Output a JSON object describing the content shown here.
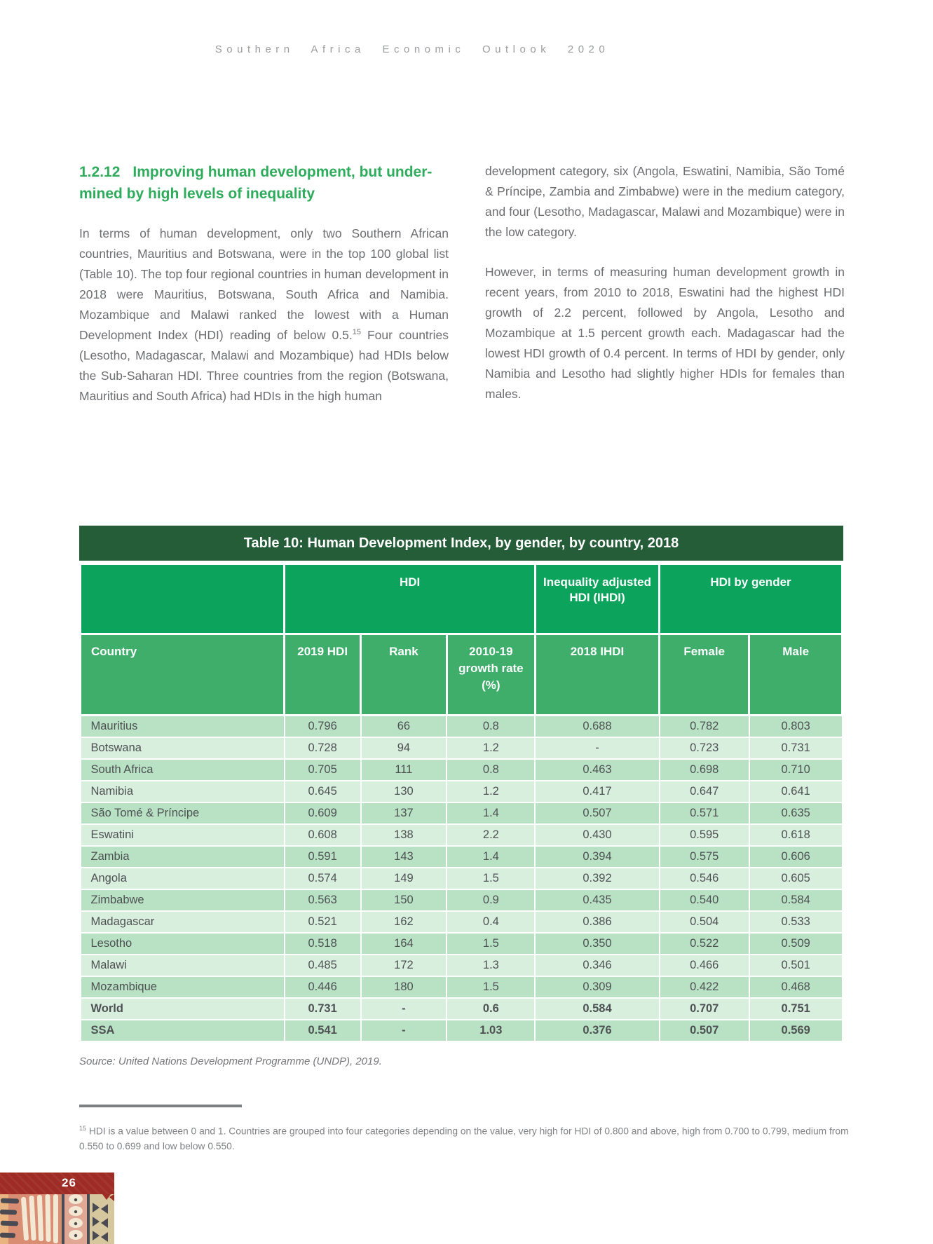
{
  "page": {
    "header_title": "Southern Africa Economic Outlook 2020",
    "page_number": "26"
  },
  "section": {
    "number": "1.2.12",
    "title_line1": "Improving human development, but under-",
    "title_line2": "mined by high levels of inequality"
  },
  "body": {
    "left_p1_part1": "In terms of human development, only two Southern African countries, Mauritius and Botswana, were in the top 100 global list (Table 10). The top four regional countries in human development in 2018 were Mauritius, Botswana, South Africa and Namibia. Mozambique and Malawi ranked the lowest with a Human Development Index (HDI) reading of below 0.5.",
    "left_p1_footnote_marker": "15",
    "left_p1_part2": " Four countries (Lesotho, Madagascar, Malawi and Mozambique) had HDIs below the Sub-Saharan HDI. Three countries from the region (Botswana, Mauritius and South Africa) had HDIs in the high human",
    "right_p1": "development category, six (Angola, Eswatini, Namibia, São Tomé & Príncipe, Zambia and Zimbabwe) were in the medium category, and four (Lesotho, Madagascar, Malawi and Mozambique) were in the low category.",
    "right_p2": "However, in terms of measuring human development growth in recent years, from 2010 to 2018, Eswatini had the highest HDI growth of 2.2 percent, followed by Angola, Lesotho and Mozambique at 1.5 percent growth each. Madagascar had the lowest HDI growth of 0.4 percent. In terms of HDI by gender, only Namibia and Lesotho had slightly higher HDIs for females than males."
  },
  "table": {
    "title": "Table 10: Human Development Index, by gender, by country, 2018",
    "group_headers": [
      {
        "label": "",
        "span": 1
      },
      {
        "label": "HDI",
        "span": 3
      },
      {
        "label": "Inequality adjusted HDI (IHDI)",
        "span": 1
      },
      {
        "label": "HDI by gender",
        "span": 2
      }
    ],
    "columns": [
      "Country",
      "2019 HDI",
      "Rank",
      "2010-19 growth rate (%)",
      "2018 IHDI",
      "Female",
      "Male"
    ],
    "rows": [
      {
        "cells": [
          "Mauritius",
          "0.796",
          "66",
          "0.8",
          "0.688",
          "0.782",
          "0.803"
        ],
        "bold": false
      },
      {
        "cells": [
          "Botswana",
          "0.728",
          "94",
          "1.2",
          "-",
          "0.723",
          "0.731"
        ],
        "bold": false
      },
      {
        "cells": [
          "South Africa",
          "0.705",
          "111",
          "0.8",
          "0.463",
          "0.698",
          "0.710"
        ],
        "bold": false
      },
      {
        "cells": [
          "Namibia",
          "0.645",
          "130",
          "1.2",
          "0.417",
          "0.647",
          "0.641"
        ],
        "bold": false
      },
      {
        "cells": [
          "São Tomé & Príncipe",
          "0.609",
          "137",
          "1.4",
          "0.507",
          "0.571",
          "0.635"
        ],
        "bold": false
      },
      {
        "cells": [
          "Eswatini",
          "0.608",
          "138",
          "2.2",
          "0.430",
          "0.595",
          "0.618"
        ],
        "bold": false
      },
      {
        "cells": [
          "Zambia",
          "0.591",
          "143",
          "1.4",
          "0.394",
          "0.575",
          "0.606"
        ],
        "bold": false
      },
      {
        "cells": [
          "Angola",
          "0.574",
          "149",
          "1.5",
          "0.392",
          "0.546",
          "0.605"
        ],
        "bold": false
      },
      {
        "cells": [
          "Zimbabwe",
          "0.563",
          "150",
          "0.9",
          "0.435",
          "0.540",
          "0.584"
        ],
        "bold": false
      },
      {
        "cells": [
          "Madagascar",
          "0.521",
          "162",
          "0.4",
          "0.386",
          "0.504",
          "0.533"
        ],
        "bold": false
      },
      {
        "cells": [
          "Lesotho",
          "0.518",
          "164",
          "1.5",
          "0.350",
          "0.522",
          "0.509"
        ],
        "bold": false
      },
      {
        "cells": [
          "Malawi",
          "0.485",
          "172",
          "1.3",
          "0.346",
          "0.466",
          "0.501"
        ],
        "bold": false
      },
      {
        "cells": [
          "Mozambique",
          "0.446",
          "180",
          "1.5",
          "0.309",
          "0.422",
          "0.468"
        ],
        "bold": false
      },
      {
        "cells": [
          "World",
          "0.731",
          "-",
          "0.6",
          "0.584",
          "0.707",
          "0.751"
        ],
        "bold": true
      },
      {
        "cells": [
          "SSA",
          "0.541",
          "-",
          "1.03",
          "0.376",
          "0.507",
          "0.569"
        ],
        "bold": true
      }
    ]
  },
  "source_note": "Source: United Nations Development Programme (UNDP), 2019.",
  "footnote": {
    "marker": "15",
    "text": " HDI is a value between 0 and 1. Countries are grouped into four categories depending on the value, very high for HDI of 0.800 and above, high from 0.700 to 0.799, medium from 0.550 to 0.699 and low below 0.550."
  },
  "colors": {
    "heading_green": "#2eac5c",
    "table_title_bar": "#255d38",
    "group_header_green": "#0ca45c",
    "column_header_green": "#3fae6b",
    "row_dark_green": "#b9e2c4",
    "row_light_green": "#d9efde",
    "body_text_gray": "#6d6e71",
    "footer_red": "#9e2b24"
  }
}
